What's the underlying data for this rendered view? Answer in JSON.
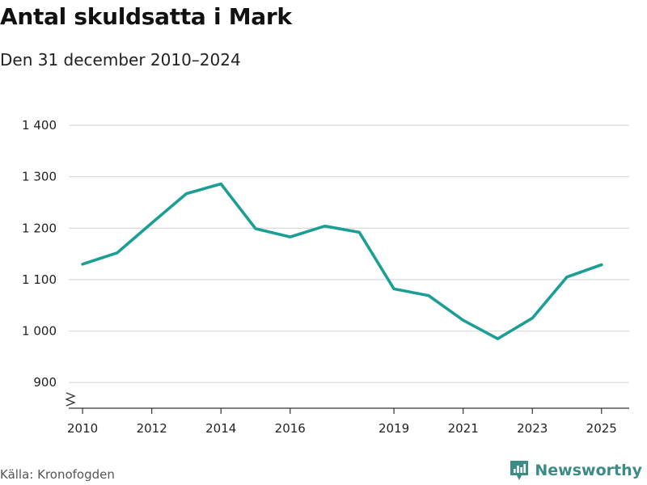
{
  "header": {
    "title": "Antal skuldsatta i Mark",
    "subtitle": "Den 31 december 2010–2024"
  },
  "footer": {
    "source": "Källa: Kronofogden",
    "brand": "Newsworthy",
    "brand_color": "#3a8c84"
  },
  "chart_data": {
    "type": "line",
    "title": "Antal skuldsatta i Mark",
    "subtitle": "Den 31 december 2010–2024",
    "xlabel": "",
    "ylabel": "",
    "x": [
      2010,
      2011,
      2012,
      2013,
      2014,
      2015,
      2016,
      2017,
      2018,
      2019,
      2020,
      2021,
      2022,
      2023,
      2024,
      2025
    ],
    "series": [
      {
        "values": [
          1130,
          1152,
          1210,
          1267,
          1286,
          1199,
          1183,
          1204,
          1192,
          1082,
          1069,
          1021,
          985,
          1025,
          1105,
          1129
        ],
        "color": "#1b9e94"
      }
    ],
    "xticks": [
      2010,
      2012,
      2014,
      2016,
      2019,
      2021,
      2023,
      2025
    ],
    "xtick_labels": [
      "2010",
      "2012",
      "2014",
      "2016",
      "2019",
      "2021",
      "2023",
      "2025"
    ],
    "yticks": [
      900,
      1000,
      1100,
      1200,
      1300,
      1400
    ],
    "ytick_labels": [
      "900",
      "1 000",
      "1 100",
      "1 200",
      "1 300",
      "1 400"
    ],
    "ylim": [
      850,
      1400
    ],
    "xlim": [
      2009.6,
      2025.8
    ],
    "grid": true,
    "axis_break": true
  }
}
